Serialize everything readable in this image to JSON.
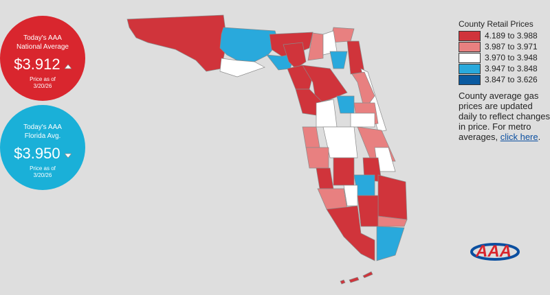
{
  "national": {
    "heading": [
      "Today's AAA",
      "National Average"
    ],
    "price": "$3.912",
    "as_of": [
      "Price as of",
      "3/20/26"
    ],
    "color": "#d9262e"
  },
  "florida": {
    "heading": [
      "Today's AAA",
      "Florida Avg."
    ],
    "price": "$3.950",
    "as_of": [
      "Price as of",
      "3/20/26"
    ],
    "color": "#1ab0d8"
  },
  "legend": {
    "title": "County Retail Prices",
    "items": [
      {
        "label": "4.189 to 3.988",
        "color": "#d0343b"
      },
      {
        "label": "3.987 to 3.971",
        "color": "#e88080"
      },
      {
        "label": "3.970 to 3.948",
        "color": "#ffffff"
      },
      {
        "label": "3.947 to 3.848",
        "color": "#29a9dc"
      },
      {
        "label": "3.847 to 3.626",
        "color": "#0a5aa0"
      }
    ]
  },
  "note": {
    "text": "County average gas prices are updated daily to reflect changes in price. For metro averages, ",
    "link": "click here",
    "end": "."
  },
  "logo": "AAA"
}
